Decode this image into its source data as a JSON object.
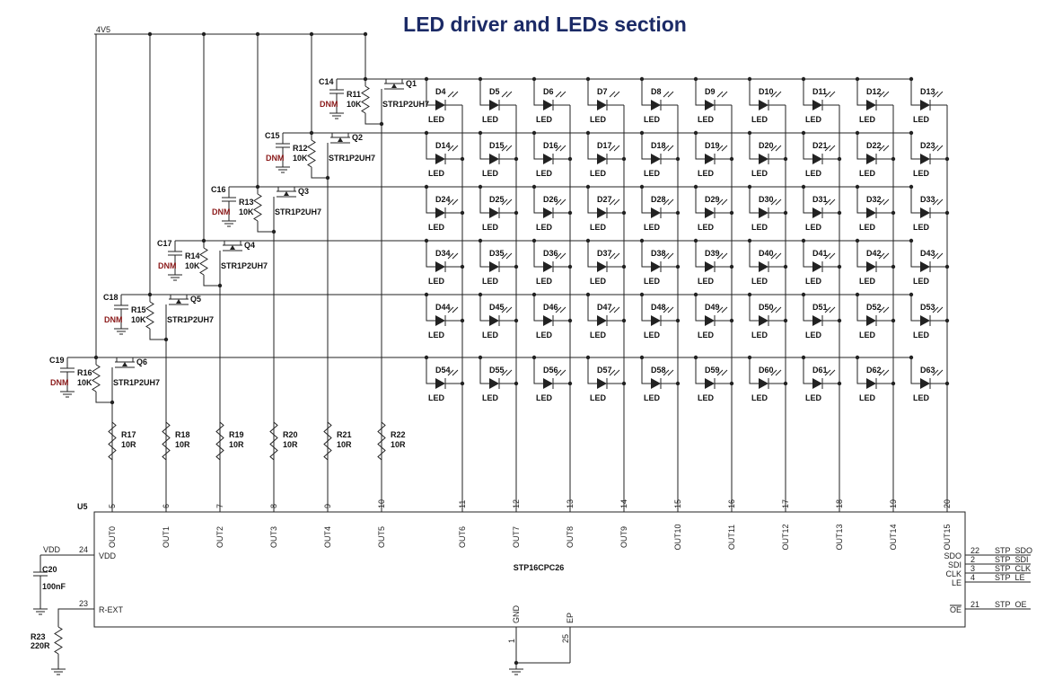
{
  "title": "LED driver and LEDs section",
  "supply_label": "4V5",
  "colors": {
    "title": "#1b2a66",
    "wire": "#222222",
    "dnm": "#8b1a1a"
  },
  "rows": [
    {
      "cap": "C14",
      "cap_val": "DNM",
      "res": "R11",
      "res_val": "10K",
      "fet": "Q1",
      "fet_part": "STR1P2UH7"
    },
    {
      "cap": "C15",
      "cap_val": "DNM",
      "res": "R12",
      "res_val": "10K",
      "fet": "Q2",
      "fet_part": "STR1P2UH7"
    },
    {
      "cap": "C16",
      "cap_val": "DNM",
      "res": "R13",
      "res_val": "10K",
      "fet": "Q3",
      "fet_part": "STR1P2UH7"
    },
    {
      "cap": "C17",
      "cap_val": "DNM",
      "res": "R14",
      "res_val": "10K",
      "fet": "Q4",
      "fet_part": "STR1P2UH7"
    },
    {
      "cap": "C18",
      "cap_val": "DNM",
      "res": "R15",
      "res_val": "10K",
      "fet": "Q5",
      "fet_part": "STR1P2UH7"
    },
    {
      "cap": "C19",
      "cap_val": "DNM",
      "res": "R16",
      "res_val": "10K",
      "fet": "Q6",
      "fet_part": "STR1P2UH7"
    }
  ],
  "led_value": "LED",
  "leds": [
    [
      "D4",
      "D5",
      "D6",
      "D7",
      "D8",
      "D9",
      "D10",
      "D11",
      "D12",
      "D13"
    ],
    [
      "D14",
      "D15",
      "D16",
      "D17",
      "D18",
      "D19",
      "D20",
      "D21",
      "D22",
      "D23"
    ],
    [
      "D24",
      "D25",
      "D26",
      "D27",
      "D28",
      "D29",
      "D30",
      "D31",
      "D32",
      "D33"
    ],
    [
      "D34",
      "D35",
      "D36",
      "D37",
      "D38",
      "D39",
      "D40",
      "D41",
      "D42",
      "D43"
    ],
    [
      "D44",
      "D45",
      "D46",
      "D47",
      "D48",
      "D49",
      "D50",
      "D51",
      "D52",
      "D53"
    ],
    [
      "D54",
      "D55",
      "D56",
      "D57",
      "D58",
      "D59",
      "D60",
      "D61",
      "D62",
      "D63"
    ]
  ],
  "out_resistors": [
    {
      "name": "R17",
      "value": "10R"
    },
    {
      "name": "R18",
      "value": "10R"
    },
    {
      "name": "R19",
      "value": "10R"
    },
    {
      "name": "R20",
      "value": "10R"
    },
    {
      "name": "R21",
      "value": "10R"
    },
    {
      "name": "R22",
      "value": "10R"
    }
  ],
  "ic": {
    "ref": "U5",
    "part": "STP16CPC26",
    "outputs": [
      {
        "pin": "5",
        "name": "OUT0"
      },
      {
        "pin": "6",
        "name": "OUT1"
      },
      {
        "pin": "7",
        "name": "OUT2"
      },
      {
        "pin": "8",
        "name": "OUT3"
      },
      {
        "pin": "9",
        "name": "OUT4"
      },
      {
        "pin": "10",
        "name": "OUT5"
      },
      {
        "pin": "11",
        "name": "OUT6"
      },
      {
        "pin": "12",
        "name": "OUT7"
      },
      {
        "pin": "13",
        "name": "OUT8"
      },
      {
        "pin": "14",
        "name": "OUT9"
      },
      {
        "pin": "15",
        "name": "OUT10"
      },
      {
        "pin": "16",
        "name": "OUT11"
      },
      {
        "pin": "17",
        "name": "OUT12"
      },
      {
        "pin": "18",
        "name": "OUT13"
      },
      {
        "pin": "19",
        "name": "OUT14"
      },
      {
        "pin": "20",
        "name": "OUT15"
      }
    ],
    "left_pins": [
      {
        "pin": "24",
        "name": "VDD",
        "net": "VDD"
      },
      {
        "pin": "23",
        "name": "R-EXT",
        "net": ""
      }
    ],
    "right_pins": [
      {
        "pin": "22",
        "name": "SDO",
        "net": "STP_SDO"
      },
      {
        "pin": "2",
        "name": "SDI",
        "net": "STP_SDI"
      },
      {
        "pin": "3",
        "name": "CLK",
        "net": "STP_CLK"
      },
      {
        "pin": "4",
        "name": "LE",
        "net": "STP_LE"
      },
      {
        "pin": "21",
        "name": "OE",
        "net": "STP_OE"
      }
    ],
    "bottom_pins": [
      {
        "pin": "1",
        "name": "GND"
      },
      {
        "pin": "25",
        "name": "EP"
      }
    ]
  },
  "c20": {
    "name": "C20",
    "value": "100nF"
  },
  "r23": {
    "name": "R23",
    "value": "220R"
  }
}
